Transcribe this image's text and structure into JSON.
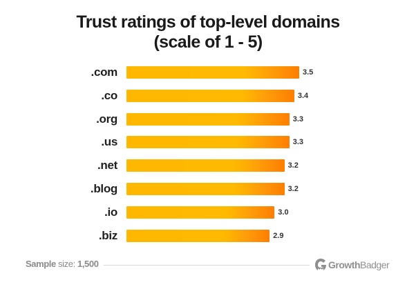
{
  "chart_data": {
    "type": "bar",
    "orientation": "horizontal",
    "title": "Trust ratings of top-level domains (scale of 1 - 5)",
    "title_lines": [
      "Trust ratings of top-level domains",
      "(scale of 1 - 5)"
    ],
    "categories": [
      ".com",
      ".co",
      ".org",
      ".us",
      ".net",
      ".blog",
      ".io",
      ".biz"
    ],
    "values": [
      3.5,
      3.4,
      3.3,
      3.3,
      3.2,
      3.2,
      3.0,
      2.9
    ],
    "value_labels": [
      "3.5",
      "3.4",
      "3.3",
      "3.3",
      "3.2",
      "3.2",
      "3.0",
      "2.9"
    ],
    "xlabel": "",
    "ylabel": "",
    "grid": false,
    "legend": null,
    "bar_gradient": [
      "#FFB700",
      "#FF7E00"
    ]
  },
  "footer": {
    "sample_bold": "Sample",
    "sample_rest": " size: ",
    "sample_value": "1,500",
    "brand_bold": "Growth",
    "brand_rest": "Badger",
    "brand_icon": "growthbadger-logo-icon"
  }
}
